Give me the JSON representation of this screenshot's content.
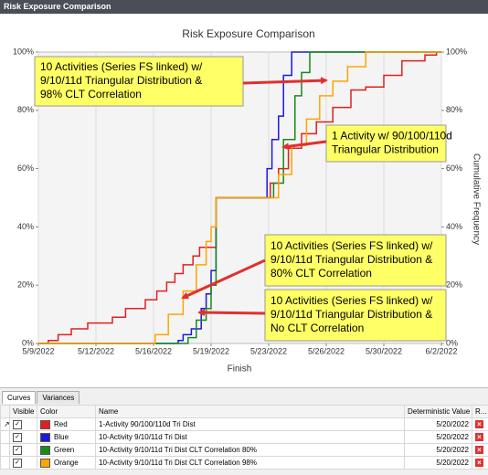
{
  "window_title": "Risk Exposure Comparison",
  "chart_data": {
    "type": "step",
    "title": "Risk Exposure Comparison",
    "xlabel": "Finish",
    "y2label": "Cumulative Frequency",
    "xlim": [
      0,
      24.5
    ],
    "xticks": [
      {
        "value": 0,
        "label": "5/9/2022"
      },
      {
        "value": 3.5,
        "label": "5/12/2022"
      },
      {
        "value": 7,
        "label": "5/16/2022"
      },
      {
        "value": 10.5,
        "label": "5/19/2022"
      },
      {
        "value": 14,
        "label": "5/23/2022"
      },
      {
        "value": 17.5,
        "label": "5/26/2022"
      },
      {
        "value": 21,
        "label": "5/30/2022"
      },
      {
        "value": 24.5,
        "label": "6/2/2022"
      }
    ],
    "ylim": [
      0,
      100
    ],
    "yticks": [
      {
        "value": 0,
        "label": "0%"
      },
      {
        "value": 20,
        "label": "20%"
      },
      {
        "value": 40,
        "label": "40%"
      },
      {
        "value": 60,
        "label": "60%"
      },
      {
        "value": 80,
        "label": "80%"
      },
      {
        "value": 100,
        "label": "100%"
      }
    ],
    "y2lim": [
      0,
      100
    ],
    "y2ticks": [
      {
        "value": 0,
        "label": "0%"
      },
      {
        "value": 20,
        "label": "20%"
      },
      {
        "value": 40,
        "label": "40%"
      },
      {
        "value": 60,
        "label": "60%"
      },
      {
        "value": 80,
        "label": "80%"
      },
      {
        "value": 100,
        "label": "100%"
      }
    ],
    "grid": true,
    "series": [
      {
        "name": "Red",
        "color": "#e02020",
        "x": [
          0,
          0.6,
          1.2,
          2,
          3,
          4.5,
          5.3,
          6.5,
          7.2,
          7.8,
          8.3,
          8.8,
          9.4,
          9.8,
          10.8,
          14.1,
          14.6,
          15.2,
          16,
          16.9,
          17.9,
          19,
          19.9,
          21,
          22.1,
          23.5,
          24.2
        ],
        "values": [
          0,
          1,
          3,
          5,
          7,
          9,
          12,
          15,
          18,
          21,
          24,
          27,
          30,
          33,
          50,
          55,
          60,
          67,
          72,
          76,
          81,
          87,
          88,
          92,
          97,
          99,
          100
        ]
      },
      {
        "name": "Blue",
        "color": "#1a1adb",
        "x": [
          0,
          8.5,
          8.8,
          9.3,
          9.9,
          10.2,
          10.5,
          10.8,
          13.9,
          14.2,
          14.6,
          14.9,
          15.4
        ],
        "values": [
          0,
          1,
          3,
          5,
          12,
          17,
          25,
          50,
          60,
          70,
          78,
          92,
          100
        ]
      },
      {
        "name": "Green",
        "color": "#1a8a1a",
        "x": [
          0,
          9.1,
          9.6,
          10.2,
          10.5,
          10.8,
          14.3,
          14.9,
          15.6,
          16,
          16.5
        ],
        "values": [
          0,
          2,
          8,
          12,
          20,
          50,
          55,
          70,
          85,
          93,
          100
        ]
      },
      {
        "name": "Orange",
        "color": "#ffa500",
        "x": [
          0,
          7.1,
          7.9,
          8.8,
          9.6,
          10.2,
          10.5,
          10.8,
          14.6,
          15.4,
          16.3,
          17.1,
          17.9,
          18.8,
          19.9
        ],
        "values": [
          0,
          3,
          10,
          18,
          27,
          35,
          40,
          50,
          58,
          68,
          77,
          85,
          90,
          95,
          100
        ]
      }
    ],
    "annotations": [
      {
        "lines": [
          "10 Activities (Series FS linked) w/",
          "9/10/11d Triangular Distribution &",
          "98% CLT Correlation"
        ]
      },
      {
        "lines": [
          "1 Activity w/ 90/100/110d",
          "Triangular Distribution"
        ]
      },
      {
        "lines": [
          "10 Activities (Series FS linked) w/",
          "9/10/11d Triangular Distribution &",
          "80% CLT Correlation"
        ]
      },
      {
        "lines": [
          "10 Activities (Series FS linked) w/",
          "9/10/11d Triangular Distribution &",
          "No CLT Correlation"
        ]
      }
    ]
  },
  "panel": {
    "tabs": [
      "Curves",
      "Variances"
    ],
    "columns": [
      "Visible",
      "Color",
      "Name",
      "Deterministic Value",
      "R..."
    ],
    "rows": [
      {
        "name": "1-Activity 90/100/110d Tri Dist",
        "deterministic_value": "5/20/2022"
      },
      {
        "name": "10-Activity 9/10/11d Tri Dist",
        "deterministic_value": "5/20/2022"
      },
      {
        "name": "10-Activity 9/10/11d  Tri Dist CLT Correlation 80%",
        "deterministic_value": "5/20/2022"
      },
      {
        "name": "10-Activity 9/10/11d Tri Dist CLT Correlation 98%",
        "deterministic_value": "5/20/2022"
      }
    ]
  }
}
